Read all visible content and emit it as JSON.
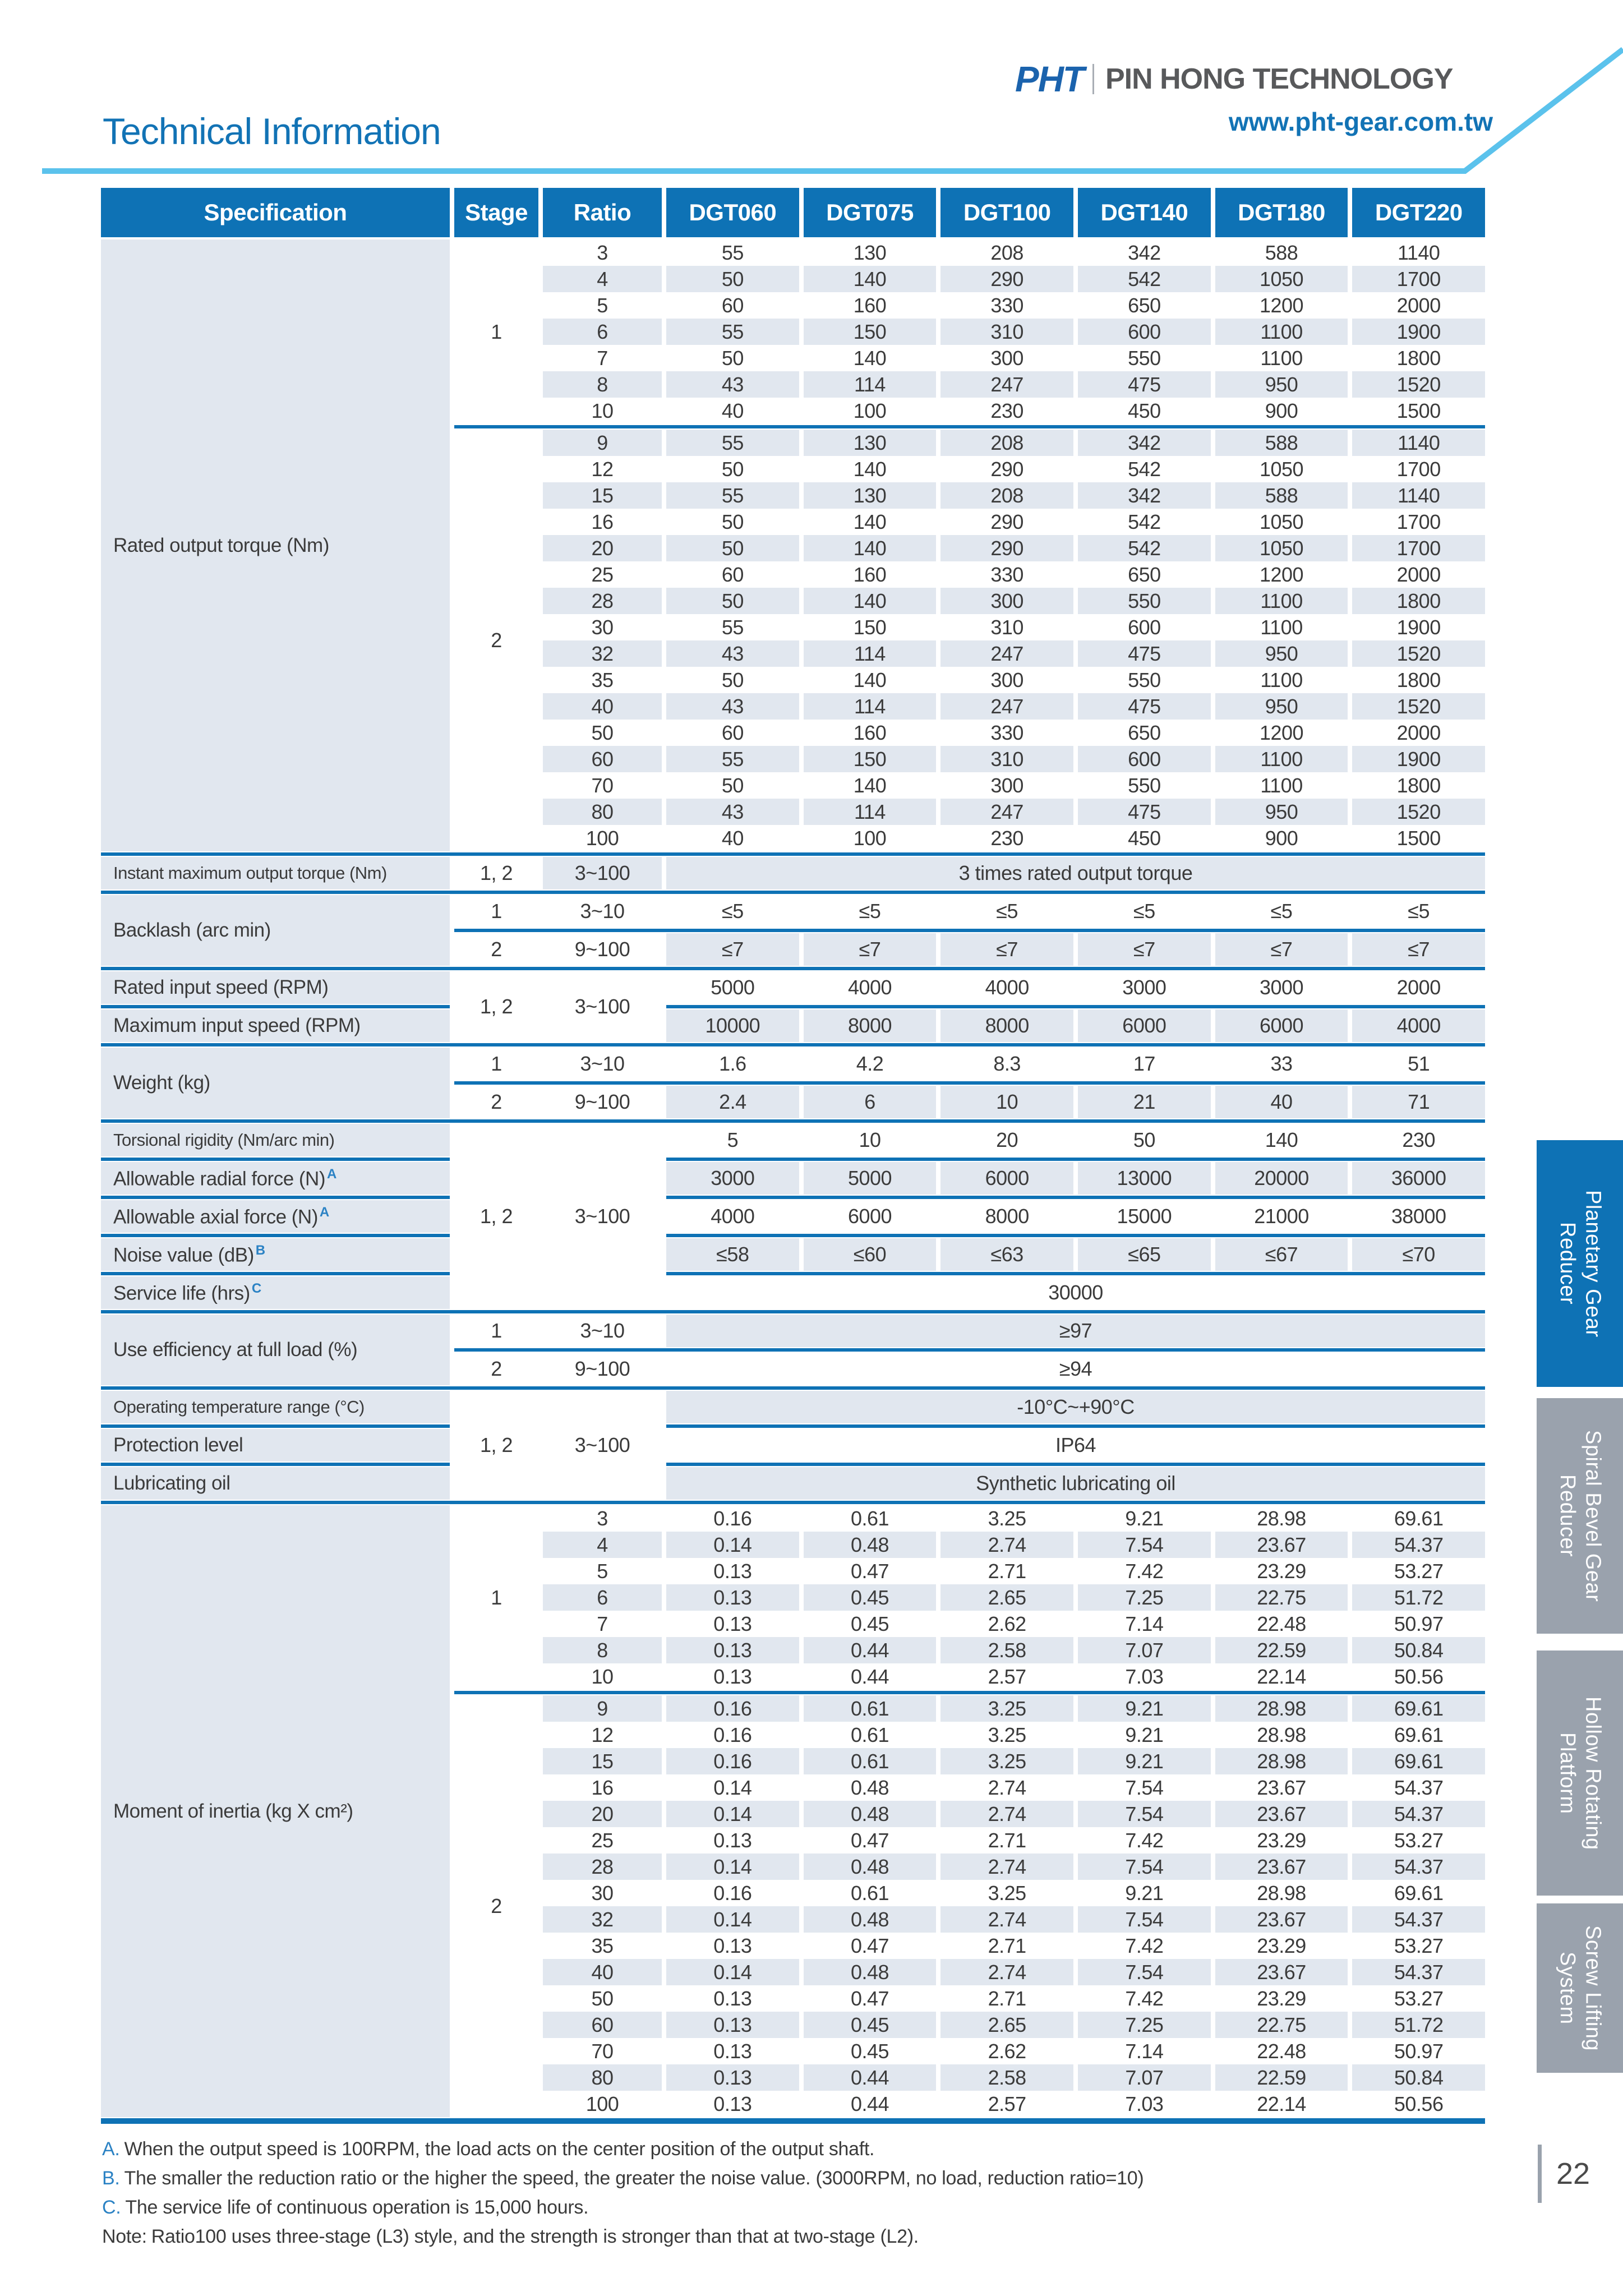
{
  "header": {
    "title": "Technical Information",
    "logo": "PHT",
    "company": "PIN HONG TECHNOLOGY",
    "website": "www.pht-gear.com.tw"
  },
  "colors": {
    "accent_blue": "#0e72b5",
    "swoosh_light_blue": "#5bc2ec",
    "cell_shade": "#e1e7ef",
    "tab_gray": "#9aa2ad",
    "logo_blue": "#1b63ad",
    "company_gray": "#58595b",
    "text_dark": "#3b3b3b"
  },
  "table": {
    "columns": [
      "Specification",
      "Stage",
      "Ratio",
      "DGT060",
      "DGT075",
      "DGT100",
      "DGT140",
      "DGT180",
      "DGT220"
    ],
    "rated_output_torque": {
      "label": "Rated output torque (Nm)",
      "stage1": {
        "stage": "1",
        "rows": [
          {
            "ratio": "3",
            "values": [
              55,
              130,
              208,
              342,
              588,
              1140
            ]
          },
          {
            "ratio": "4",
            "values": [
              50,
              140,
              290,
              542,
              1050,
              1700
            ]
          },
          {
            "ratio": "5",
            "values": [
              60,
              160,
              330,
              650,
              1200,
              2000
            ]
          },
          {
            "ratio": "6",
            "values": [
              55,
              150,
              310,
              600,
              1100,
              1900
            ]
          },
          {
            "ratio": "7",
            "values": [
              50,
              140,
              300,
              550,
              1100,
              1800
            ]
          },
          {
            "ratio": "8",
            "values": [
              43,
              114,
              247,
              475,
              950,
              1520
            ]
          },
          {
            "ratio": "10",
            "values": [
              40,
              100,
              230,
              450,
              900,
              1500
            ]
          }
        ]
      },
      "stage2": {
        "stage": "2",
        "rows": [
          {
            "ratio": "9",
            "values": [
              55,
              130,
              208,
              342,
              588,
              1140
            ]
          },
          {
            "ratio": "12",
            "values": [
              50,
              140,
              290,
              542,
              1050,
              1700
            ]
          },
          {
            "ratio": "15",
            "values": [
              55,
              130,
              208,
              342,
              588,
              1140
            ]
          },
          {
            "ratio": "16",
            "values": [
              50,
              140,
              290,
              542,
              1050,
              1700
            ]
          },
          {
            "ratio": "20",
            "values": [
              50,
              140,
              290,
              542,
              1050,
              1700
            ]
          },
          {
            "ratio": "25",
            "values": [
              60,
              160,
              330,
              650,
              1200,
              2000
            ]
          },
          {
            "ratio": "28",
            "values": [
              50,
              140,
              300,
              550,
              1100,
              1800
            ]
          },
          {
            "ratio": "30",
            "values": [
              55,
              150,
              310,
              600,
              1100,
              1900
            ]
          },
          {
            "ratio": "32",
            "values": [
              43,
              114,
              247,
              475,
              950,
              1520
            ]
          },
          {
            "ratio": "35",
            "values": [
              50,
              140,
              300,
              550,
              1100,
              1800
            ]
          },
          {
            "ratio": "40",
            "values": [
              43,
              114,
              247,
              475,
              950,
              1520
            ]
          },
          {
            "ratio": "50",
            "values": [
              60,
              160,
              330,
              650,
              1200,
              2000
            ]
          },
          {
            "ratio": "60",
            "values": [
              55,
              150,
              310,
              600,
              1100,
              1900
            ]
          },
          {
            "ratio": "70",
            "values": [
              50,
              140,
              300,
              550,
              1100,
              1800
            ]
          },
          {
            "ratio": "80",
            "values": [
              43,
              114,
              247,
              475,
              950,
              1520
            ]
          },
          {
            "ratio": "100",
            "values": [
              40,
              100,
              230,
              450,
              900,
              1500
            ]
          }
        ]
      }
    },
    "instant_max": {
      "label": "Instant maximum output torque (Nm)",
      "stage": "1, 2",
      "ratio": "3~100",
      "value": "3 times rated output torque",
      "shaded": true
    },
    "backlash": {
      "label": "Backlash (arc min)",
      "rows": [
        {
          "stage": "1",
          "ratio": "3~10",
          "values": [
            "≤5",
            "≤5",
            "≤5",
            "≤5",
            "≤5",
            "≤5"
          ],
          "shaded": false
        },
        {
          "stage": "2",
          "ratio": "9~100",
          "values": [
            "≤7",
            "≤7",
            "≤7",
            "≤7",
            "≤7",
            "≤7"
          ],
          "shaded": true
        }
      ]
    },
    "input_speed": {
      "stage": "1, 2",
      "ratio": "3~100",
      "rows": [
        {
          "label": "Rated input speed (RPM)",
          "values": [
            5000,
            4000,
            4000,
            3000,
            3000,
            2000
          ],
          "shaded": false
        },
        {
          "label": "Maximum input speed (RPM)",
          "values": [
            10000,
            8000,
            8000,
            6000,
            6000,
            4000
          ],
          "shaded": true
        }
      ]
    },
    "weight": {
      "label": "Weight (kg)",
      "rows": [
        {
          "stage": "1",
          "ratio": "3~10",
          "values": [
            "1.6",
            "4.2",
            "8.3",
            "17",
            "33",
            "51"
          ],
          "shaded": false
        },
        {
          "stage": "2",
          "ratio": "9~100",
          "values": [
            "2.4",
            "6",
            "10",
            "21",
            "40",
            "71"
          ],
          "shaded": true
        }
      ]
    },
    "rigidity_forces": {
      "stage": "1, 2",
      "ratio": "3~100",
      "rows": [
        {
          "label": "Torsional rigidity (Nm/arc min)",
          "sup": "",
          "values": [
            5,
            10,
            20,
            50,
            140,
            230
          ],
          "shaded": false
        },
        {
          "label": "Allowable radial force (N)",
          "sup": "A",
          "values": [
            3000,
            5000,
            6000,
            13000,
            20000,
            36000
          ],
          "shaded": true
        },
        {
          "label": "Allowable axial force (N)",
          "sup": "A",
          "values": [
            4000,
            6000,
            8000,
            15000,
            21000,
            38000
          ],
          "shaded": false
        },
        {
          "label": "Noise value (dB)",
          "sup": "B",
          "values": [
            "≤58",
            "≤60",
            "≤63",
            "≤65",
            "≤67",
            "≤70"
          ],
          "shaded": true
        },
        {
          "label": "Service life (hrs)",
          "sup": "C",
          "wide": "30000",
          "shaded": false
        }
      ]
    },
    "efficiency": {
      "label": "Use efficiency at full load (%)",
      "rows": [
        {
          "stage": "1",
          "ratio": "3~10",
          "value": "≥97",
          "shaded": true
        },
        {
          "stage": "2",
          "ratio": "9~100",
          "value": "≥94",
          "shaded": false
        }
      ]
    },
    "environment": {
      "stage": "1, 2",
      "ratio": "3~100",
      "rows": [
        {
          "label": "Operating temperature range (°C)",
          "value": "-10°C~+90°C",
          "shaded": true
        },
        {
          "label": "Protection level",
          "value": "IP64",
          "shaded": false
        },
        {
          "label": "Lubricating oil",
          "value": "Synthetic lubricating oil",
          "shaded": true
        }
      ]
    },
    "moment_of_inertia": {
      "label": "Moment of inertia (kg X cm²)",
      "stage1": {
        "stage": "1",
        "rows": [
          {
            "ratio": "3",
            "values": [
              "0.16",
              "0.61",
              "3.25",
              "9.21",
              "28.98",
              "69.61"
            ]
          },
          {
            "ratio": "4",
            "values": [
              "0.14",
              "0.48",
              "2.74",
              "7.54",
              "23.67",
              "54.37"
            ]
          },
          {
            "ratio": "5",
            "values": [
              "0.13",
              "0.47",
              "2.71",
              "7.42",
              "23.29",
              "53.27"
            ]
          },
          {
            "ratio": "6",
            "values": [
              "0.13",
              "0.45",
              "2.65",
              "7.25",
              "22.75",
              "51.72"
            ]
          },
          {
            "ratio": "7",
            "values": [
              "0.13",
              "0.45",
              "2.62",
              "7.14",
              "22.48",
              "50.97"
            ]
          },
          {
            "ratio": "8",
            "values": [
              "0.13",
              "0.44",
              "2.58",
              "7.07",
              "22.59",
              "50.84"
            ]
          },
          {
            "ratio": "10",
            "values": [
              "0.13",
              "0.44",
              "2.57",
              "7.03",
              "22.14",
              "50.56"
            ]
          }
        ]
      },
      "stage2": {
        "stage": "2",
        "rows": [
          {
            "ratio": "9",
            "values": [
              "0.16",
              "0.61",
              "3.25",
              "9.21",
              "28.98",
              "69.61"
            ]
          },
          {
            "ratio": "12",
            "values": [
              "0.16",
              "0.61",
              "3.25",
              "9.21",
              "28.98",
              "69.61"
            ]
          },
          {
            "ratio": "15",
            "values": [
              "0.16",
              "0.61",
              "3.25",
              "9.21",
              "28.98",
              "69.61"
            ]
          },
          {
            "ratio": "16",
            "values": [
              "0.14",
              "0.48",
              "2.74",
              "7.54",
              "23.67",
              "54.37"
            ]
          },
          {
            "ratio": "20",
            "values": [
              "0.14",
              "0.48",
              "2.74",
              "7.54",
              "23.67",
              "54.37"
            ]
          },
          {
            "ratio": "25",
            "values": [
              "0.13",
              "0.47",
              "2.71",
              "7.42",
              "23.29",
              "53.27"
            ]
          },
          {
            "ratio": "28",
            "values": [
              "0.14",
              "0.48",
              "2.74",
              "7.54",
              "23.67",
              "54.37"
            ]
          },
          {
            "ratio": "30",
            "values": [
              "0.16",
              "0.61",
              "3.25",
              "9.21",
              "28.98",
              "69.61"
            ]
          },
          {
            "ratio": "32",
            "values": [
              "0.14",
              "0.48",
              "2.74",
              "7.54",
              "23.67",
              "54.37"
            ]
          },
          {
            "ratio": "35",
            "values": [
              "0.13",
              "0.47",
              "2.71",
              "7.42",
              "23.29",
              "53.27"
            ]
          },
          {
            "ratio": "40",
            "values": [
              "0.14",
              "0.48",
              "2.74",
              "7.54",
              "23.67",
              "54.37"
            ]
          },
          {
            "ratio": "50",
            "values": [
              "0.13",
              "0.47",
              "2.71",
              "7.42",
              "23.29",
              "53.27"
            ]
          },
          {
            "ratio": "60",
            "values": [
              "0.13",
              "0.45",
              "2.65",
              "7.25",
              "22.75",
              "51.72"
            ]
          },
          {
            "ratio": "70",
            "values": [
              "0.13",
              "0.45",
              "2.62",
              "7.14",
              "22.48",
              "50.97"
            ]
          },
          {
            "ratio": "80",
            "values": [
              "0.13",
              "0.44",
              "2.58",
              "7.07",
              "22.59",
              "50.84"
            ]
          },
          {
            "ratio": "100",
            "values": [
              "0.13",
              "0.44",
              "2.57",
              "7.03",
              "22.14",
              "50.56"
            ]
          }
        ]
      }
    }
  },
  "notes": [
    {
      "prefix": "A.",
      "text": "When the output speed is 100RPM, the load acts on the center position of the output shaft."
    },
    {
      "prefix": "B.",
      "text": "The smaller the reduction ratio or the higher the speed, the greater the noise value. (3000RPM, no load, reduction ratio=10)"
    },
    {
      "prefix": "C.",
      "text": "The service life of continuous operation is 15,000 hours."
    }
  ],
  "footnote": {
    "prefix": "Note:",
    "text": "Ratio100 uses three-stage (L3) style, and the strength is stronger than that at two-stage (L2)."
  },
  "tabs": [
    {
      "line1": "Planetary Gear",
      "line2": "Reducer",
      "active": true
    },
    {
      "line1": "Spiral Bevel Gear",
      "line2": "Reducer",
      "active": false
    },
    {
      "line1": "Hollow Rotating",
      "line2": "Platform",
      "active": false
    },
    {
      "line1": "Screw Lifting",
      "line2": "System",
      "active": false
    }
  ],
  "page_number": "22"
}
